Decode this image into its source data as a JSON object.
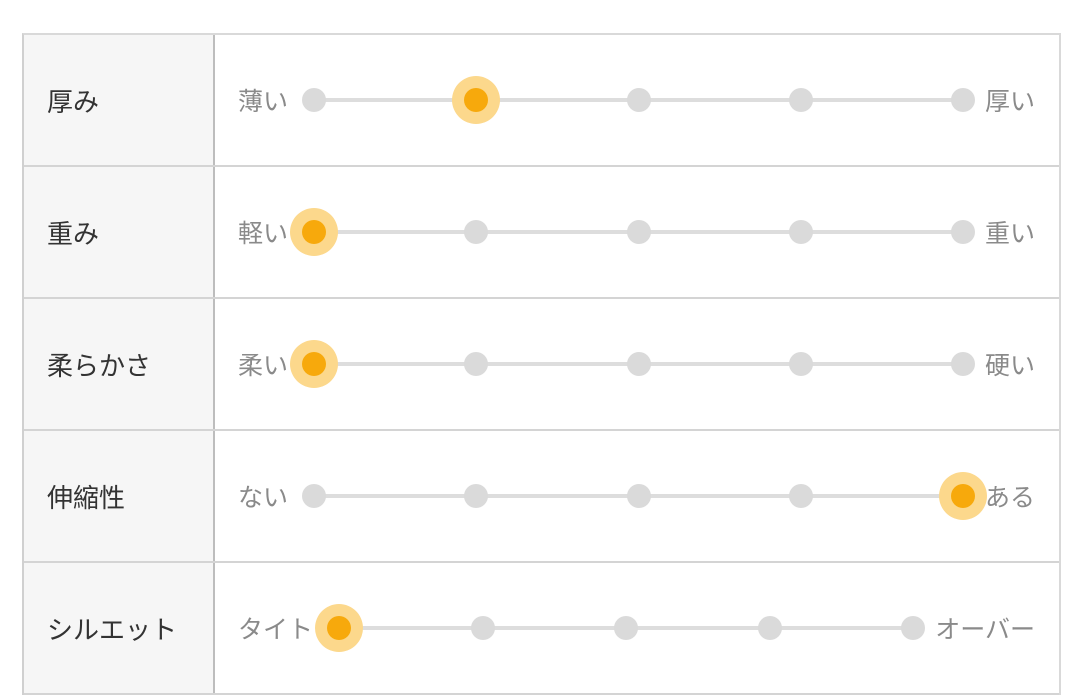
{
  "colors": {
    "selected": "#f7a90c",
    "selected_halo": "#fcd88c",
    "inactive": "#dadada"
  },
  "rows": [
    {
      "label": "厚み",
      "min": "薄い",
      "max": "厚い",
      "steps": 5,
      "value": 2
    },
    {
      "label": "重み",
      "min": "軽い",
      "max": "重い",
      "steps": 5,
      "value": 1
    },
    {
      "label": "柔らかさ",
      "min": "柔い",
      "max": "硬い",
      "steps": 5,
      "value": 1
    },
    {
      "label": "伸縮性",
      "min": "ない",
      "max": "ある",
      "steps": 5,
      "value": 5
    },
    {
      "label": "シルエット",
      "min": "タイト",
      "max": "オーバー",
      "steps": 5,
      "value": 1
    }
  ]
}
